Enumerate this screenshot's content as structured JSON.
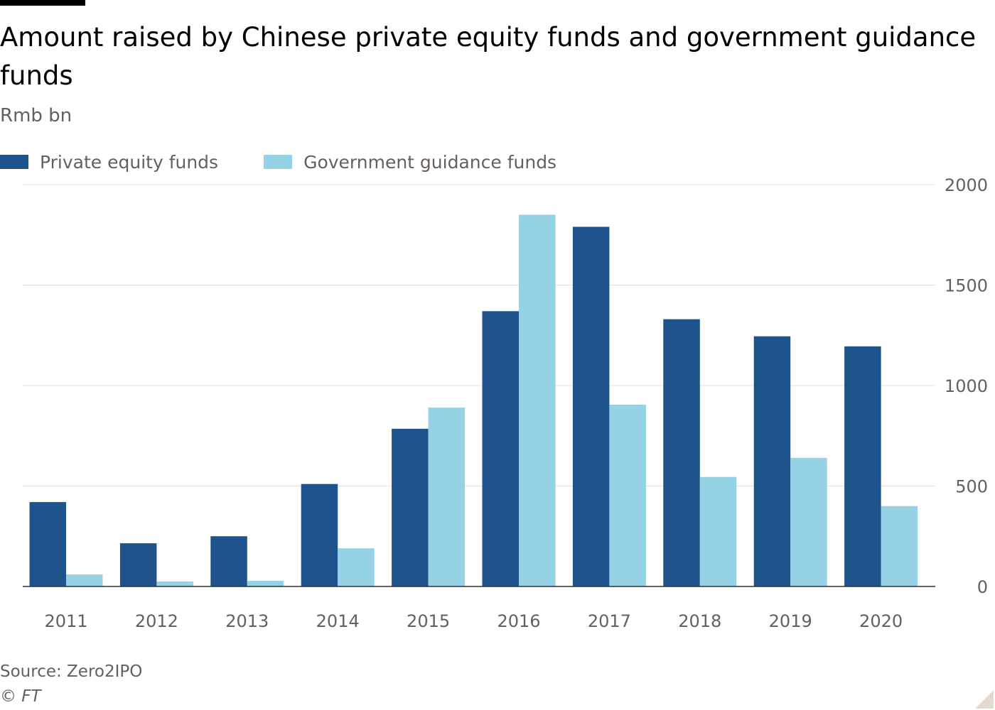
{
  "header": {
    "title": "Amount raised by Chinese private equity funds and government guidance funds",
    "subtitle": "Rmb bn"
  },
  "footer": {
    "source": "Source: Zero2IPO",
    "copyright": "© FT"
  },
  "colors": {
    "private_equity": "#1f538b",
    "government_guidance": "#96d2e5",
    "gridline": "#e6e0da",
    "baseline": "#33302e"
  },
  "chart_data": {
    "type": "bar",
    "title": "Amount raised by Chinese private equity funds and government guidance funds",
    "subtitle": "Rmb bn",
    "xlabel": "",
    "ylabel": "",
    "ylim": [
      0,
      2000
    ],
    "yticks": [
      0,
      500,
      1000,
      1500,
      2000
    ],
    "y_axis_side": "right",
    "grid": true,
    "legend_position": "top-left",
    "categories": [
      "2011",
      "2012",
      "2013",
      "2014",
      "2015",
      "2016",
      "2017",
      "2018",
      "2019",
      "2020"
    ],
    "series": [
      {
        "name": "Private equity funds",
        "color": "#1f538b",
        "values": [
          420,
          215,
          250,
          510,
          785,
          1370,
          1790,
          1330,
          1245,
          1195
        ]
      },
      {
        "name": "Government guidance funds",
        "color": "#96d2e5",
        "values": [
          60,
          25,
          28,
          190,
          890,
          1850,
          905,
          545,
          640,
          400
        ]
      }
    ]
  }
}
